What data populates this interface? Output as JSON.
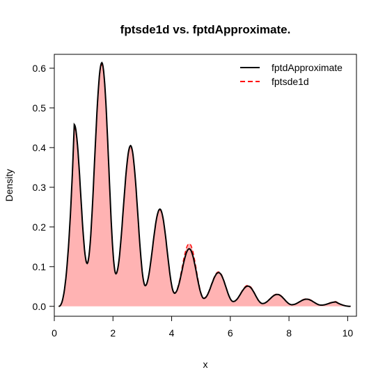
{
  "chart_data": {
    "type": "area",
    "title": "fptsde1d vs. fptdApproximate.",
    "xlabel": "x",
    "ylabel": "Density",
    "xlim": [
      0,
      10.3
    ],
    "ylim": [
      -0.025,
      0.635
    ],
    "x_ticks": [
      0,
      2,
      4,
      6,
      8,
      10
    ],
    "y_ticks": [
      0.0,
      0.1,
      0.2,
      0.3,
      0.4,
      0.5,
      0.6
    ],
    "x_tick_labels": [
      "0",
      "2",
      "4",
      "6",
      "8",
      "10"
    ],
    "y_tick_labels": [
      "0.0",
      "0.1",
      "0.2",
      "0.3",
      "0.4",
      "0.5",
      "0.6"
    ],
    "grid": false,
    "legend_position": "top-right",
    "x_range": [
      0.15,
      10.1
    ],
    "series": [
      {
        "name": "fptdApproximate",
        "style": "solid",
        "color": "#000000",
        "peaks": [
          {
            "x": 0.68,
            "y": 0.458
          },
          {
            "x": 1.62,
            "y": 0.614
          },
          {
            "x": 2.6,
            "y": 0.405
          },
          {
            "x": 3.6,
            "y": 0.245
          },
          {
            "x": 4.6,
            "y": 0.145
          },
          {
            "x": 5.6,
            "y": 0.085
          },
          {
            "x": 6.6,
            "y": 0.051
          },
          {
            "x": 7.6,
            "y": 0.03
          },
          {
            "x": 8.6,
            "y": 0.018
          },
          {
            "x": 9.6,
            "y": 0.011
          }
        ],
        "troughs": [
          {
            "x": 1.12,
            "y": 0.108
          },
          {
            "x": 2.1,
            "y": 0.082
          },
          {
            "x": 3.1,
            "y": 0.052
          },
          {
            "x": 4.1,
            "y": 0.033
          },
          {
            "x": 5.1,
            "y": 0.02
          },
          {
            "x": 6.1,
            "y": 0.012
          },
          {
            "x": 7.1,
            "y": 0.007
          },
          {
            "x": 8.1,
            "y": 0.004
          },
          {
            "x": 9.1,
            "y": 0.003
          }
        ]
      },
      {
        "name": "fptsde1d",
        "style": "dashed",
        "color": "#ff0000",
        "fill": "#ffb3b3",
        "peaks": [
          {
            "x": 0.68,
            "y": 0.452
          },
          {
            "x": 1.62,
            "y": 0.61
          },
          {
            "x": 2.6,
            "y": 0.402
          },
          {
            "x": 3.6,
            "y": 0.243
          },
          {
            "x": 4.6,
            "y": 0.158
          },
          {
            "x": 5.6,
            "y": 0.087
          },
          {
            "x": 6.6,
            "y": 0.053
          },
          {
            "x": 7.6,
            "y": 0.031
          },
          {
            "x": 8.6,
            "y": 0.019
          },
          {
            "x": 9.6,
            "y": 0.012
          }
        ],
        "troughs": [
          {
            "x": 1.12,
            "y": 0.11
          },
          {
            "x": 2.1,
            "y": 0.083
          },
          {
            "x": 3.1,
            "y": 0.053
          },
          {
            "x": 4.1,
            "y": 0.034
          },
          {
            "x": 5.1,
            "y": 0.021
          },
          {
            "x": 6.1,
            "y": 0.012
          },
          {
            "x": 7.1,
            "y": 0.007
          },
          {
            "x": 8.1,
            "y": 0.004
          },
          {
            "x": 9.1,
            "y": 0.003
          }
        ]
      }
    ]
  }
}
